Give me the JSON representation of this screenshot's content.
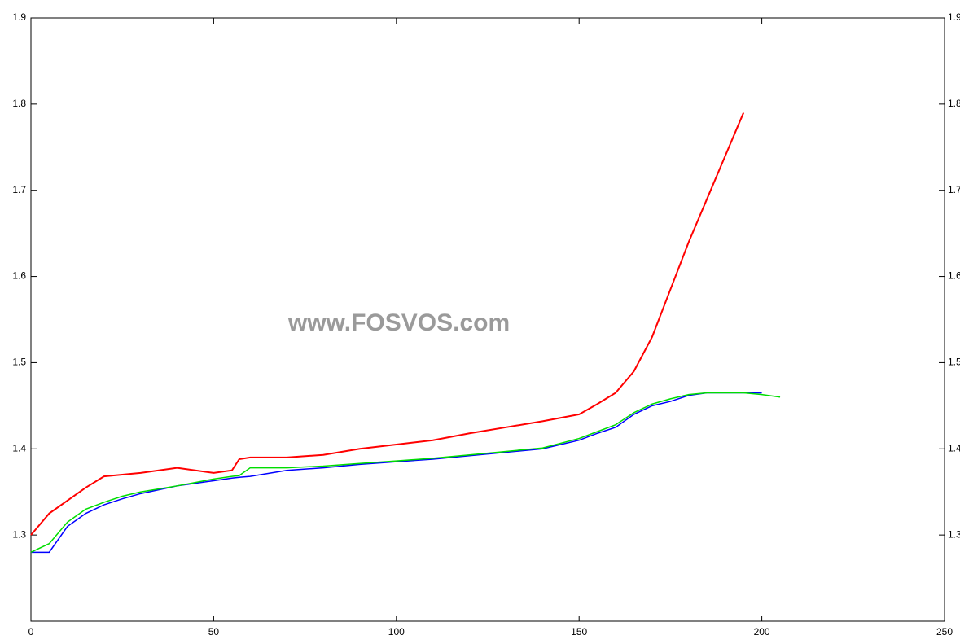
{
  "chart_data": {
    "type": "line",
    "annotation": "www.FOSVOS.com",
    "x": [
      0,
      5,
      10,
      15,
      20,
      25,
      30,
      40,
      50,
      55,
      57,
      60,
      70,
      80,
      90,
      100,
      110,
      120,
      130,
      140,
      150,
      155,
      160,
      165,
      170,
      175,
      180,
      185,
      190,
      195,
      200,
      205
    ],
    "series": [
      {
        "color": "#ff0000",
        "values": [
          1.3,
          1.325,
          1.34,
          1.355,
          1.368,
          1.37,
          1.372,
          1.378,
          1.372,
          1.375,
          1.388,
          1.39,
          1.39,
          1.393,
          1.4,
          1.405,
          1.41,
          1.418,
          1.425,
          1.432,
          1.44,
          1.452,
          1.465,
          1.49,
          1.53,
          1.585,
          1.64,
          1.69,
          1.74,
          1.79,
          null,
          null
        ]
      },
      {
        "color": "#0000ff",
        "values": [
          1.28,
          1.28,
          1.31,
          1.325,
          1.335,
          1.342,
          1.348,
          1.357,
          1.363,
          1.366,
          1.367,
          1.368,
          1.375,
          1.378,
          1.382,
          1.385,
          1.388,
          1.392,
          1.396,
          1.4,
          1.41,
          1.418,
          1.425,
          1.44,
          1.45,
          1.455,
          1.462,
          1.465,
          1.465,
          1.465,
          1.465,
          null
        ]
      },
      {
        "color": "#00dd00",
        "values": [
          1.28,
          1.29,
          1.315,
          1.33,
          1.338,
          1.345,
          1.35,
          1.357,
          1.365,
          1.368,
          1.369,
          1.378,
          1.378,
          1.38,
          1.383,
          1.386,
          1.389,
          1.393,
          1.397,
          1.401,
          1.412,
          1.42,
          1.428,
          1.442,
          1.452,
          1.458,
          1.463,
          1.465,
          1.465,
          1.465,
          1.463,
          1.46
        ]
      }
    ],
    "xlim": [
      0,
      250
    ],
    "xticks": [
      0,
      50,
      100,
      150,
      200,
      250
    ],
    "ylim": [
      1.2,
      1.9
    ],
    "yticks": [
      1.3,
      1.4,
      1.5,
      1.6,
      1.7,
      1.8,
      1.9
    ]
  }
}
